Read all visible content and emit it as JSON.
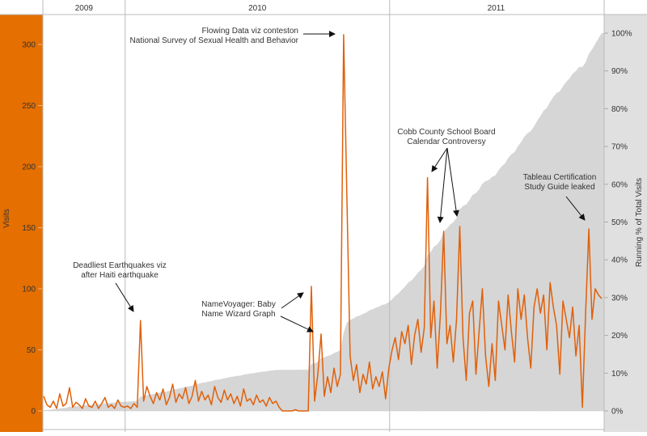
{
  "chart_data": {
    "type": "line",
    "title": "",
    "ylabel": "Visits",
    "y2label": "Running % of Total Visits",
    "ylim": [
      0,
      310
    ],
    "y2lim": [
      0,
      1.0
    ],
    "yticks": [
      "0",
      "50",
      "100",
      "150",
      "200",
      "250",
      "300"
    ],
    "y2ticks": [
      "0%",
      "10%",
      "20%",
      "30%",
      "40%",
      "50%",
      "60%",
      "70%",
      "80%",
      "90%",
      "100%"
    ],
    "year_bands": [
      {
        "label": "2009",
        "start": 0,
        "end": 25.5
      },
      {
        "label": "2010",
        "start": 25.5,
        "end": 107.5
      },
      {
        "label": "2011",
        "start": 107.5,
        "end": 173.5
      }
    ],
    "series": [
      {
        "name": "Visits",
        "color": "#e0600a",
        "values": [
          12,
          5,
          3,
          8,
          2,
          14,
          4,
          6,
          19,
          3,
          7,
          5,
          2,
          10,
          4,
          3,
          8,
          2,
          6,
          11,
          3,
          5,
          2,
          9,
          4,
          3,
          4,
          2,
          6,
          3,
          74,
          8,
          20,
          12,
          6,
          15,
          9,
          18,
          5,
          11,
          22,
          7,
          14,
          10,
          19,
          6,
          12,
          25,
          8,
          16,
          9,
          13,
          5,
          20,
          11,
          7,
          17,
          9,
          14,
          6,
          12,
          4,
          18,
          8,
          10,
          5,
          13,
          7,
          9,
          4,
          11,
          6,
          8,
          3,
          0,
          0,
          0,
          0,
          1,
          0,
          0,
          0,
          0,
          102,
          8,
          30,
          63,
          12,
          28,
          15,
          35,
          20,
          30,
          308,
          176,
          45,
          25,
          38,
          15,
          30,
          22,
          40,
          18,
          28,
          20,
          32,
          10,
          35,
          50,
          60,
          42,
          65,
          55,
          70,
          38,
          62,
          75,
          48,
          68,
          191,
          60,
          90,
          35,
          80,
          147,
          55,
          70,
          40,
          75,
          151,
          60,
          25,
          80,
          90,
          30,
          65,
          100,
          45,
          20,
          55,
          25,
          90,
          70,
          50,
          95,
          65,
          40,
          100,
          75,
          95,
          60,
          35,
          85,
          100,
          80,
          95,
          50,
          105,
          85,
          70,
          30,
          90,
          75,
          60,
          85,
          45,
          70,
          3,
          80,
          149,
          75,
          100,
          95,
          92
        ]
      },
      {
        "name": "Running % of Total Visits",
        "color": "#d6d6d6",
        "derived_from": "Visits (cumulative share)"
      }
    ],
    "annotations": [
      {
        "lines": [
          "Flowing Data viz conteston",
          "National Survey of Sexual Health and Behavior"
        ]
      },
      {
        "lines": [
          "Deadliest Earthquakes viz",
          "after Haiti earthquake"
        ]
      },
      {
        "lines": [
          "NameVoyager: Baby",
          "Name Wizard Graph"
        ]
      },
      {
        "lines": [
          "Cobb County School Board",
          "Calendar Controversy"
        ]
      },
      {
        "lines": [
          "Tableau Certification",
          "Study Guide leaked"
        ]
      }
    ],
    "colors": {
      "left_panel": "#e56f00",
      "right_panel": "#e0e0e0",
      "area": "#d6d6d6",
      "line": "#e0600a"
    }
  }
}
